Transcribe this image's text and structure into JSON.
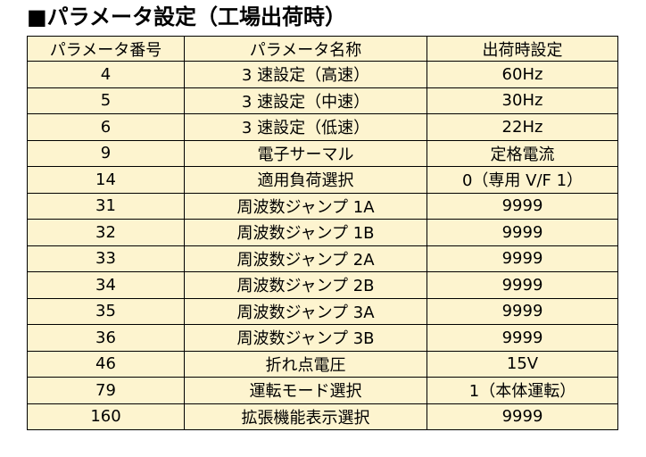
{
  "header": {
    "title": "■パラメータ設定（工場出荷時）"
  },
  "table": {
    "columns": [
      "パラメータ番号",
      "パラメータ名称",
      "出荷時設定"
    ],
    "rows": [
      [
        "4",
        "3 速設定（高速）",
        "60Hz"
      ],
      [
        "5",
        "3 速設定（中速）",
        "30Hz"
      ],
      [
        "6",
        "3 速設定（低速）",
        "22Hz"
      ],
      [
        "9",
        "電子サーマル",
        "定格電流"
      ],
      [
        "14",
        "適用負荷選択",
        "0（専用 V/F 1）"
      ],
      [
        "31",
        "周波数ジャンプ 1A",
        "9999"
      ],
      [
        "32",
        "周波数ジャンプ 1B",
        "9999"
      ],
      [
        "33",
        "周波数ジャンプ 2A",
        "9999"
      ],
      [
        "34",
        "周波数ジャンプ 2B",
        "9999"
      ],
      [
        "35",
        "周波数ジャンプ 3A",
        "9999"
      ],
      [
        "36",
        "周波数ジャンプ 3B",
        "9999"
      ],
      [
        "46",
        "折れ点電圧",
        "15V"
      ],
      [
        "79",
        "運転モード選択",
        "1（本体運転）"
      ],
      [
        "160",
        "拡張機能表示選択",
        "9999"
      ]
    ]
  }
}
